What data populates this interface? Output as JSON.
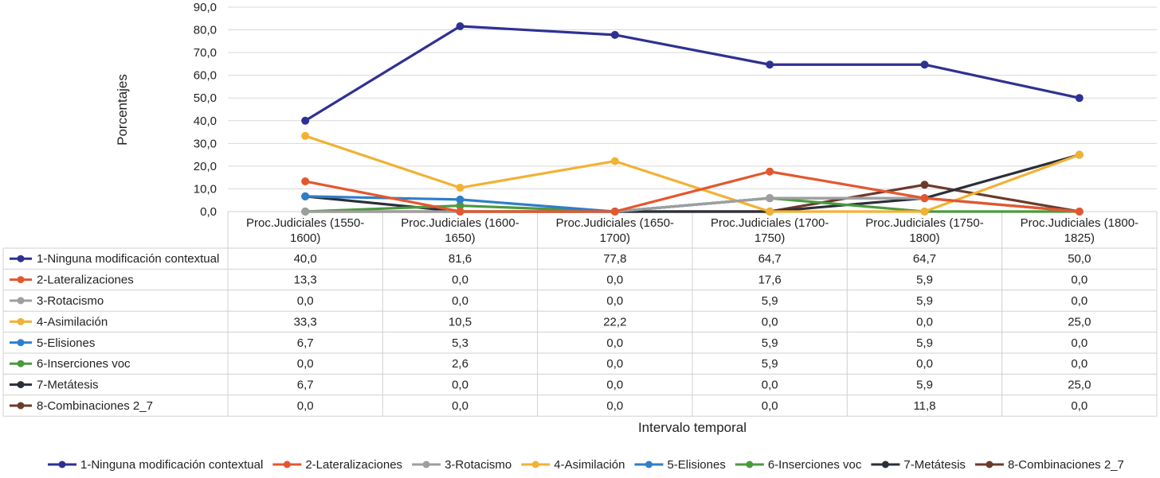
{
  "chart_data": {
    "type": "line",
    "title": "",
    "xlabel": "Intervalo temporal",
    "ylabel": "Porcentajes",
    "ylim": [
      0,
      90
    ],
    "ytick_step": 10,
    "ytick_labels": [
      "0,0",
      "10,0",
      "20,0",
      "30,0",
      "40,0",
      "50,0",
      "60,0",
      "70,0",
      "80,0",
      "90,0"
    ],
    "grid": true,
    "legend_position": "bottom",
    "categories": [
      [
        "Proc.Judiciales (1550-",
        "1600)"
      ],
      [
        "Proc.Judiciales (1600-",
        "1650)"
      ],
      [
        "Proc.Judiciales (1650-",
        "1700)"
      ],
      [
        "Proc.Judiciales (1700-",
        "1750)"
      ],
      [
        "Proc.Judiciales (1750-",
        "1800)"
      ],
      [
        "Proc.Judiciales (1800-",
        "1825)"
      ]
    ],
    "series": [
      {
        "name": "1-Ninguna modificación contextual",
        "color": "#2e3192",
        "values": [
          40.0,
          81.6,
          77.8,
          64.7,
          64.7,
          50.0
        ],
        "labels": [
          "40,0",
          "81,6",
          "77,8",
          "64,7",
          "64,7",
          "50,0"
        ]
      },
      {
        "name": "2-Lateralizaciones",
        "color": "#e4572e",
        "values": [
          13.3,
          0.0,
          0.0,
          17.6,
          5.9,
          0.0
        ],
        "labels": [
          "13,3",
          "0,0",
          "0,0",
          "17,6",
          "5,9",
          "0,0"
        ]
      },
      {
        "name": "3-Rotacismo",
        "color": "#9e9e9e",
        "values": [
          0.0,
          0.0,
          0.0,
          5.9,
          5.9,
          0.0
        ],
        "labels": [
          "0,0",
          "0,0",
          "0,0",
          "5,9",
          "5,9",
          "0,0"
        ]
      },
      {
        "name": "4-Asimilación",
        "color": "#f2b134",
        "values": [
          33.3,
          10.5,
          22.2,
          0.0,
          0.0,
          25.0
        ],
        "labels": [
          "33,3",
          "10,5",
          "22,2",
          "0,0",
          "0,0",
          "25,0"
        ]
      },
      {
        "name": "5-Elisiones",
        "color": "#2f7ec9",
        "values": [
          6.7,
          5.3,
          0.0,
          5.9,
          5.9,
          0.0
        ],
        "labels": [
          "6,7",
          "5,3",
          "0,0",
          "5,9",
          "5,9",
          "0,0"
        ]
      },
      {
        "name": "6-Inserciones voc",
        "color": "#4a9a3e",
        "values": [
          0.0,
          2.6,
          0.0,
          5.9,
          0.0,
          0.0
        ],
        "labels": [
          "0,0",
          "2,6",
          "0,0",
          "5,9",
          "0,0",
          "0,0"
        ]
      },
      {
        "name": "7-Metátesis",
        "color": "#2b2f3a",
        "values": [
          6.7,
          0.0,
          0.0,
          0.0,
          5.9,
          25.0
        ],
        "labels": [
          "6,7",
          "0,0",
          "0,0",
          "0,0",
          "5,9",
          "25,0"
        ]
      },
      {
        "name": "8-Combinaciones 2_7",
        "color": "#6b3a2a",
        "values": [
          0.0,
          0.0,
          0.0,
          0.0,
          11.8,
          0.0
        ],
        "labels": [
          "0,0",
          "0,0",
          "0,0",
          "0,0",
          "11,8",
          "0,0"
        ]
      }
    ]
  }
}
